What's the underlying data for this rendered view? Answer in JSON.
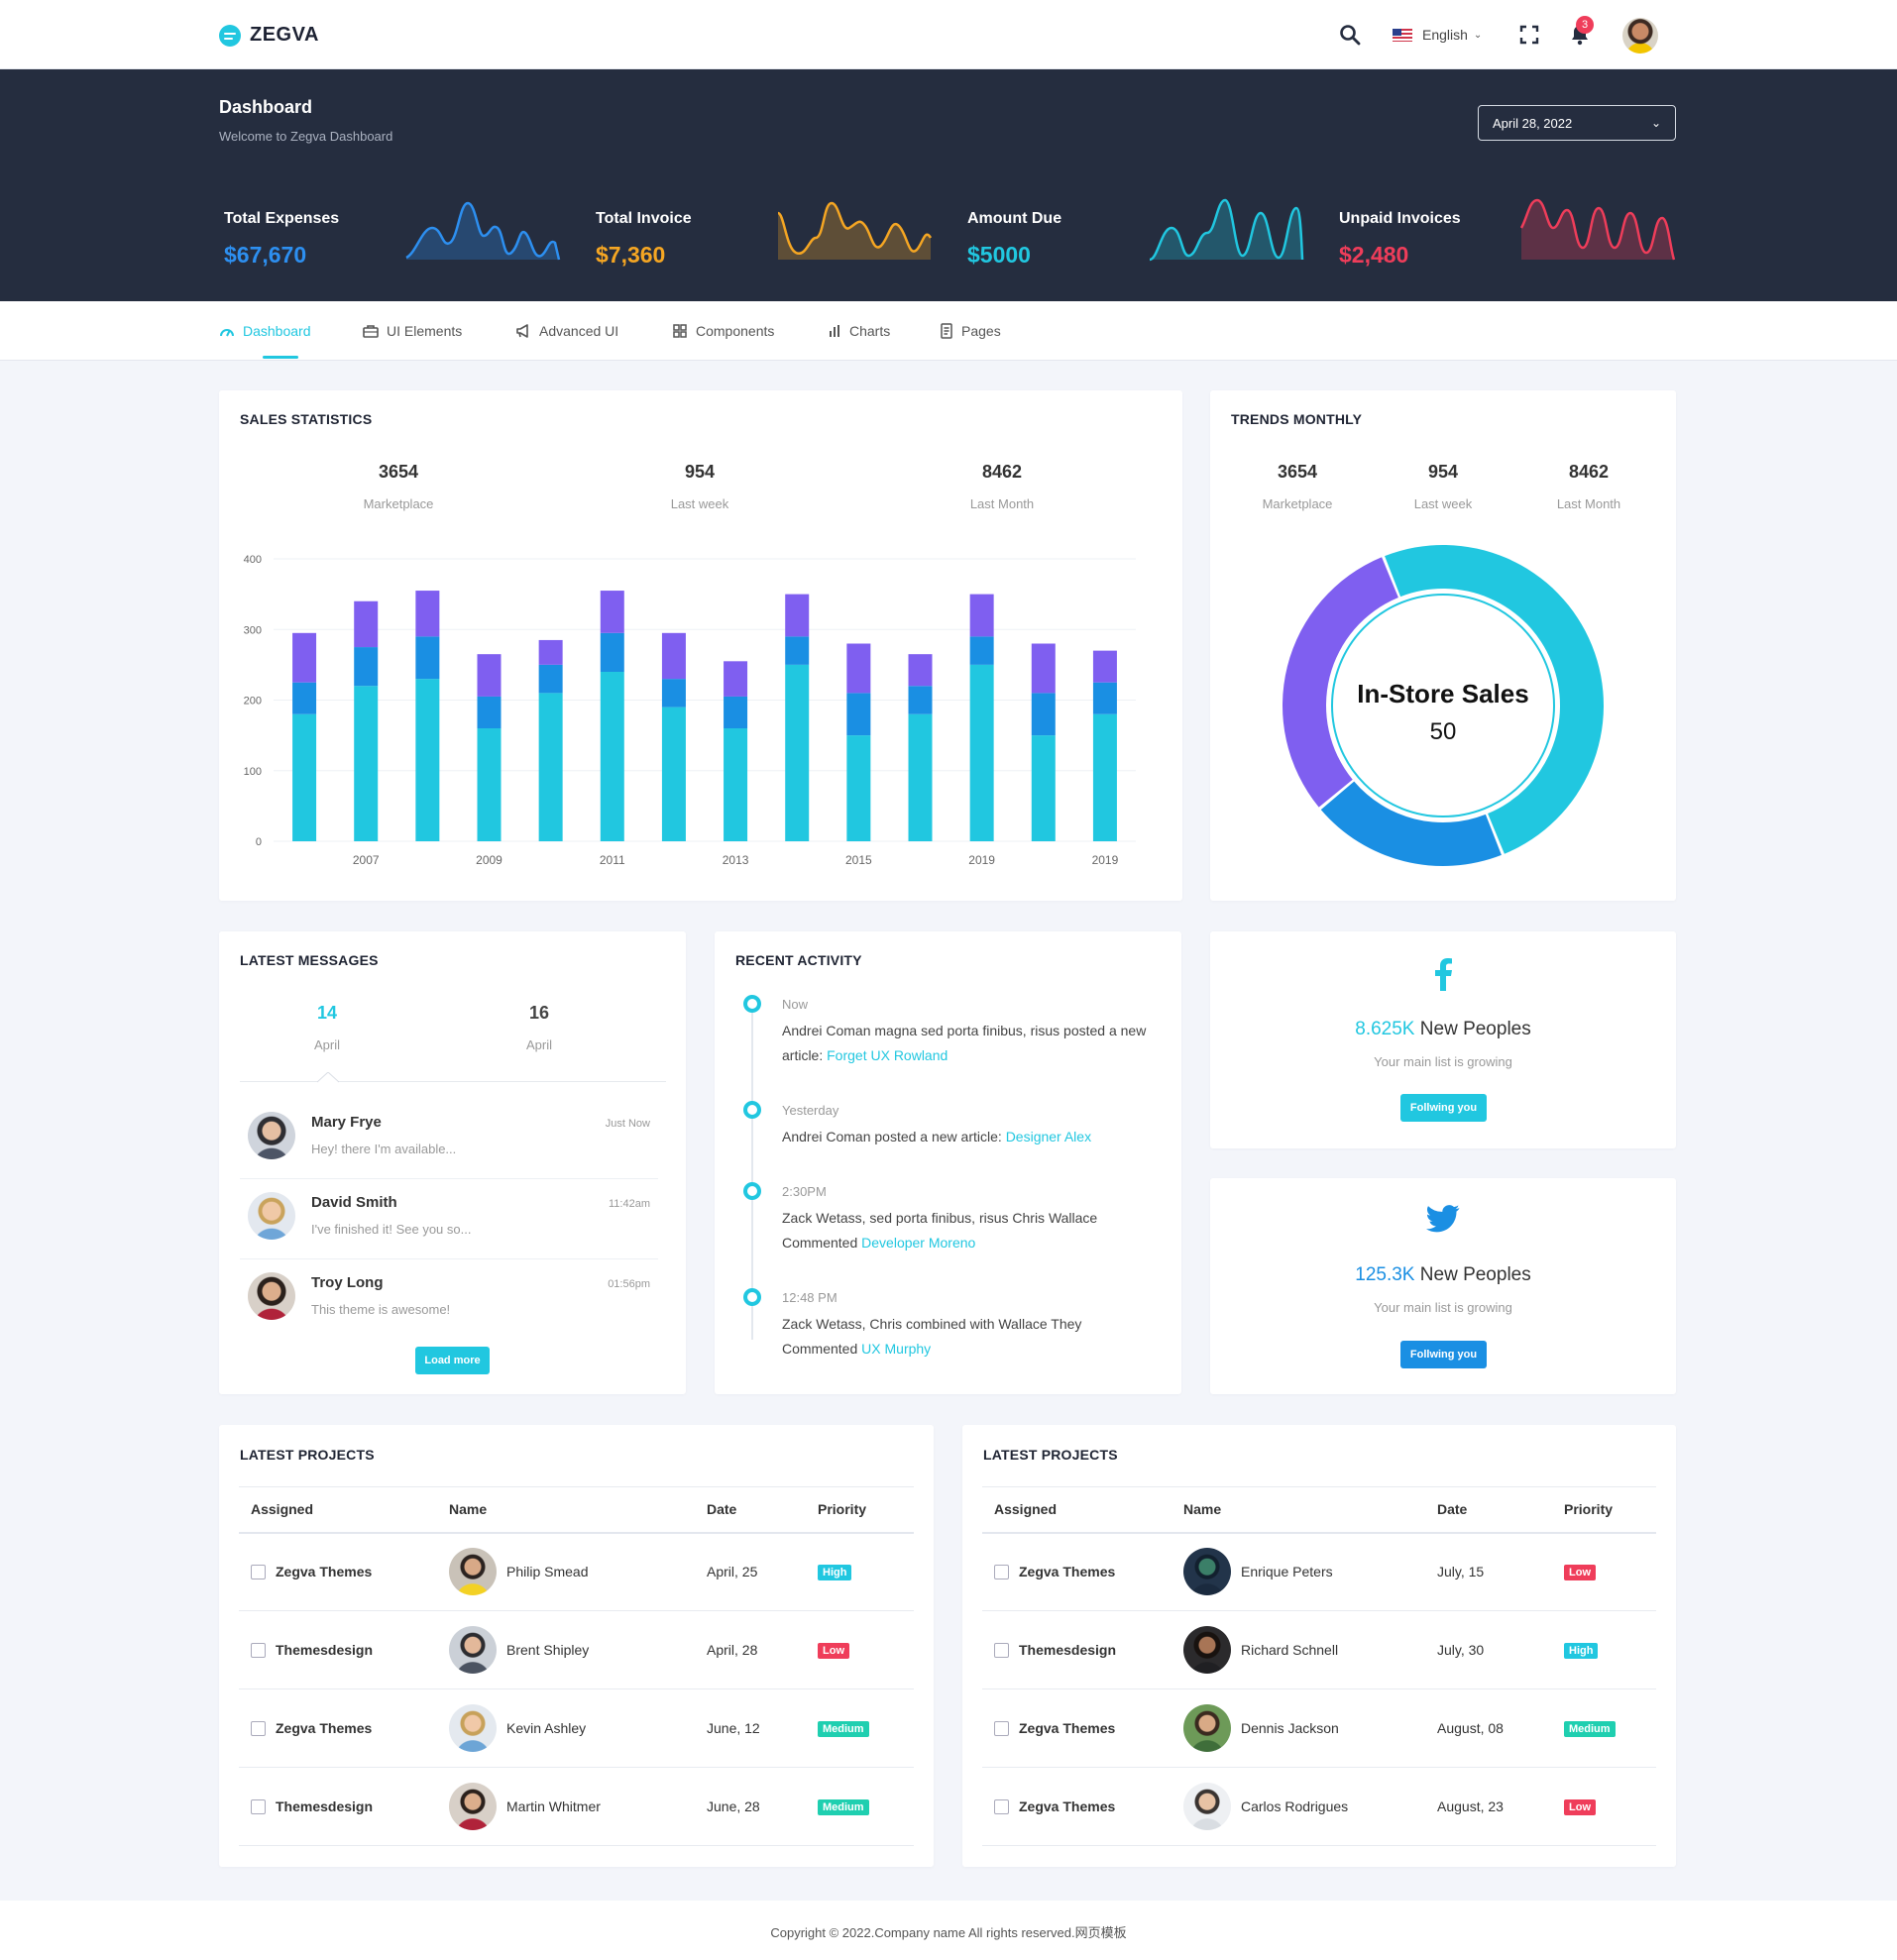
{
  "app": {
    "brand": "ZEGVA"
  },
  "topbar": {
    "icons": [
      "search-icon",
      "fullscreen-icon",
      "bell-icon"
    ],
    "language": "English",
    "notification_count": "3"
  },
  "header": {
    "title": "Dashboard",
    "subtitle": "Welcome to Zegva Dashboard",
    "date": "April 28, 2022",
    "stats": [
      {
        "label": "Total Expenses",
        "value": "$67,670",
        "color": "#2d8ff0"
      },
      {
        "label": "Total Invoice",
        "value": "$7,360",
        "color": "#f5a623"
      },
      {
        "label": "Amount Due",
        "value": "$5000",
        "color": "#21c7e0"
      },
      {
        "label": "Unpaid Invoices",
        "value": "$2,480",
        "color": "#ef3d5a"
      }
    ]
  },
  "nav": {
    "items": [
      {
        "label": "Dashboard",
        "icon": "dashboard-icon"
      },
      {
        "label": "UI Elements",
        "icon": "briefcase-icon"
      },
      {
        "label": "Advanced UI",
        "icon": "megaphone-icon"
      },
      {
        "label": "Components",
        "icon": "grid-icon"
      },
      {
        "label": "Charts",
        "icon": "bar-chart-icon"
      },
      {
        "label": "Pages",
        "icon": "document-icon"
      }
    ]
  },
  "sales": {
    "title": "SALES STATISTICS",
    "kpis": [
      {
        "num": "3654",
        "label": "Marketplace"
      },
      {
        "num": "954",
        "label": "Last week"
      },
      {
        "num": "8462",
        "label": "Last Month"
      }
    ]
  },
  "chart_data": [
    {
      "type": "bar",
      "stacked": true,
      "x_tick_labels": [
        "2007",
        "2009",
        "2011",
        "2013",
        "2015",
        "2019",
        "2019"
      ],
      "ylim": [
        0,
        400
      ],
      "y_ticks": [
        "0",
        "100",
        "200",
        "300",
        "400"
      ],
      "grid": true,
      "series": [
        {
          "color": "#21c7e0",
          "values": [
            180,
            220,
            230,
            160,
            210,
            240,
            190,
            160,
            250,
            150,
            180,
            250,
            150,
            180
          ]
        },
        {
          "color": "#1a8fe3",
          "values": [
            45,
            55,
            60,
            45,
            40,
            55,
            40,
            45,
            40,
            60,
            40,
            40,
            60,
            45
          ]
        },
        {
          "color": "#7f5ff0",
          "values": [
            70,
            65,
            65,
            60,
            35,
            60,
            65,
            50,
            60,
            70,
            45,
            60,
            70,
            45
          ]
        }
      ]
    },
    {
      "type": "pie",
      "donut": true,
      "center_label": "In-Store Sales",
      "center_value": "50",
      "slices": [
        {
          "value": 50,
          "color": "#21c7e0"
        },
        {
          "value": 20,
          "color": "#1a8fe3"
        },
        {
          "value": 30,
          "color": "#7f5ff0"
        }
      ]
    }
  ],
  "trends": {
    "title": "TRENDS MONTHLY",
    "kpis": [
      {
        "num": "3654",
        "label": "Marketplace"
      },
      {
        "num": "954",
        "label": "Last week"
      },
      {
        "num": "8462",
        "label": "Last Month"
      }
    ]
  },
  "messages": {
    "title": "LATEST MESSAGES",
    "dates": [
      {
        "day": "14",
        "month": "April"
      },
      {
        "day": "16",
        "month": "April"
      }
    ],
    "items": [
      {
        "name": "Mary Frye",
        "text": "Hey! there I'm available...",
        "time": "Just Now"
      },
      {
        "name": "David Smith",
        "text": "I've finished it! See you so...",
        "time": "11:42am"
      },
      {
        "name": "Troy Long",
        "text": "This theme is awesome!",
        "time": "01:56pm"
      }
    ],
    "load_more": "Load more"
  },
  "activity": {
    "title": "RECENT ACTIVITY",
    "items": [
      {
        "time": "Now",
        "text": "Andrei Coman magna sed porta finibus, risus posted a new article: ",
        "link": "Forget UX Rowland"
      },
      {
        "time": "Yesterday",
        "text": "Andrei Coman posted a new article: ",
        "link": "Designer Alex"
      },
      {
        "time": "2:30PM",
        "text": "Zack Wetass, sed porta finibus, risus Chris Wallace Commented ",
        "link": "Developer Moreno"
      },
      {
        "time": "12:48 PM",
        "text": "Zack Wetass, Chris combined with Wallace They Commented ",
        "link": "UX Murphy"
      }
    ]
  },
  "social": [
    {
      "icon": "facebook-icon",
      "num": "8.625K",
      "suffix": " New Peoples",
      "sub": "Your main list is growing",
      "btn": "Follwing you",
      "color": "#21c7e0"
    },
    {
      "icon": "twitter-icon",
      "num": "125.3K",
      "suffix": " New Peoples",
      "sub": "Your main list is growing",
      "btn": "Follwing you",
      "color": "#1a8fe3"
    }
  ],
  "projects": [
    {
      "title": "LATEST PROJECTS",
      "headers": [
        "Assigned",
        "Name",
        "Date",
        "Priority"
      ],
      "rows": [
        {
          "assigned": "Zegva Themes",
          "name": "Philip Smead",
          "date": "April, 25",
          "priority": "High"
        },
        {
          "assigned": "Themesdesign",
          "name": "Brent Shipley",
          "date": "April, 28",
          "priority": "Low"
        },
        {
          "assigned": "Zegva Themes",
          "name": "Kevin Ashley",
          "date": "June, 12",
          "priority": "Medium"
        },
        {
          "assigned": "Themesdesign",
          "name": "Martin Whitmer",
          "date": "June, 28",
          "priority": "Medium"
        }
      ]
    },
    {
      "title": "LATEST PROJECTS",
      "headers": [
        "Assigned",
        "Name",
        "Date",
        "Priority"
      ],
      "rows": [
        {
          "assigned": "Zegva Themes",
          "name": "Enrique Peters",
          "date": "July, 15",
          "priority": "Low"
        },
        {
          "assigned": "Themesdesign",
          "name": "Richard Schnell",
          "date": "July, 30",
          "priority": "High"
        },
        {
          "assigned": "Zegva Themes",
          "name": "Dennis Jackson",
          "date": "August, 08",
          "priority": "Medium"
        },
        {
          "assigned": "Zegva Themes",
          "name": "Carlos Rodrigues",
          "date": "August, 23",
          "priority": "Low"
        }
      ]
    }
  ],
  "priority_colors": {
    "High": "#21c7e0",
    "Low": "#ef3d5a",
    "Medium": "#1fcfb0"
  },
  "footer": {
    "text": "Copyright © 2022.Company name All rights reserved.网页模板"
  }
}
